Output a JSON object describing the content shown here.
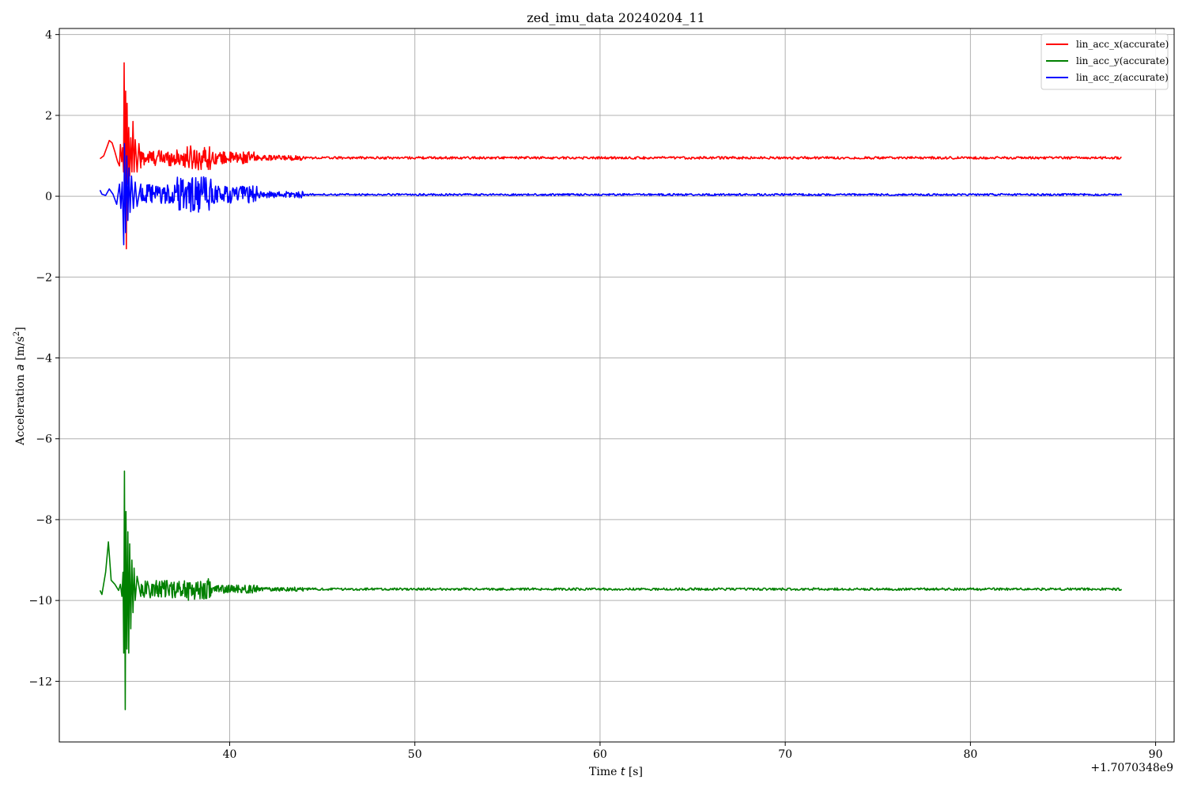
{
  "chart_data": {
    "type": "line",
    "title": "zed_imu_data 20240204_11",
    "xlabel": {
      "prefix": "Time ",
      "var": "t",
      "suffix": " [s]"
    },
    "ylabel": {
      "prefix": "Acceleration ",
      "var": "a",
      "unit": "[m/s",
      "sup": "2",
      "close": "]"
    },
    "x_offset_label": "+1.7070348e9",
    "xlim": [
      30.8,
      91.0
    ],
    "ylim": [
      -13.5,
      4.15
    ],
    "xticks": [
      40,
      50,
      60,
      70,
      80,
      90
    ],
    "yticks": [
      4,
      2,
      0,
      -2,
      -4,
      -6,
      -8,
      -10,
      -12
    ],
    "grid": true,
    "legend_position": "top-right",
    "x_range": [
      33.0,
      88.2
    ],
    "series": [
      {
        "name": "lin_acc_x(accurate)",
        "color": "#ff0000",
        "baseline": 0.95,
        "noise_late": 0.03,
        "points": [
          [
            33.0,
            0.93
          ],
          [
            33.2,
            1.0
          ],
          [
            33.4,
            1.25
          ],
          [
            33.5,
            1.38
          ],
          [
            33.65,
            1.32
          ],
          [
            33.8,
            1.1
          ],
          [
            33.95,
            0.85
          ],
          [
            34.05,
            0.75
          ],
          [
            34.1,
            1.28
          ],
          [
            34.17,
            0.85
          ],
          [
            34.22,
            1.2
          ],
          [
            34.27,
            0.6
          ],
          [
            34.3,
            3.3
          ],
          [
            34.34,
            0.2
          ],
          [
            34.38,
            2.6
          ],
          [
            34.42,
            -1.3
          ],
          [
            34.46,
            2.3
          ],
          [
            34.5,
            0.3
          ],
          [
            34.55,
            1.7
          ],
          [
            34.6,
            0.5
          ],
          [
            34.66,
            1.45
          ],
          [
            34.72,
            0.6
          ],
          [
            34.78,
            1.85
          ],
          [
            34.84,
            0.6
          ],
          [
            34.9,
            1.4
          ],
          [
            35.0,
            0.6
          ],
          [
            35.1,
            1.3
          ],
          [
            35.2,
            0.7
          ]
        ],
        "noisy": [
          [
            35.2,
            37.5,
            0.2
          ],
          [
            37.5,
            39.0,
            0.3
          ],
          [
            39.0,
            41.5,
            0.15
          ],
          [
            41.5,
            44.0,
            0.06
          ]
        ]
      },
      {
        "name": "lin_acc_y(accurate)",
        "color": "#008000",
        "baseline": -9.72,
        "noise_late": 0.03,
        "points": [
          [
            33.0,
            -9.75
          ],
          [
            33.1,
            -9.85
          ],
          [
            33.3,
            -9.3
          ],
          [
            33.45,
            -8.55
          ],
          [
            33.6,
            -9.5
          ],
          [
            33.8,
            -9.6
          ],
          [
            34.0,
            -9.75
          ],
          [
            34.1,
            -9.6
          ],
          [
            34.18,
            -9.9
          ],
          [
            34.24,
            -9.3
          ],
          [
            34.28,
            -11.3
          ],
          [
            34.32,
            -6.8
          ],
          [
            34.36,
            -12.7
          ],
          [
            34.4,
            -7.8
          ],
          [
            34.45,
            -11.2
          ],
          [
            34.5,
            -8.3
          ],
          [
            34.55,
            -11.3
          ],
          [
            34.6,
            -8.6
          ],
          [
            34.66,
            -10.7
          ],
          [
            34.72,
            -9.0
          ],
          [
            34.78,
            -10.3
          ],
          [
            34.84,
            -9.2
          ],
          [
            34.9,
            -10.0
          ],
          [
            35.0,
            -9.4
          ],
          [
            35.2,
            -9.9
          ]
        ],
        "noisy": [
          [
            35.2,
            37.5,
            0.22
          ],
          [
            37.5,
            39.0,
            0.28
          ],
          [
            39.0,
            41.5,
            0.1
          ],
          [
            41.5,
            44.0,
            0.05
          ]
        ]
      },
      {
        "name": "lin_acc_z(accurate)",
        "color": "#0000ff",
        "baseline": 0.04,
        "noise_late": 0.025,
        "points": [
          [
            33.0,
            0.15
          ],
          [
            33.1,
            0.05
          ],
          [
            33.3,
            0.02
          ],
          [
            33.5,
            0.18
          ],
          [
            33.7,
            0.05
          ],
          [
            33.9,
            -0.2
          ],
          [
            34.05,
            0.3
          ],
          [
            34.12,
            -0.3
          ],
          [
            34.2,
            0.35
          ],
          [
            34.28,
            -1.2
          ],
          [
            34.32,
            1.3
          ],
          [
            34.38,
            -0.9
          ],
          [
            34.44,
            1.0
          ],
          [
            34.5,
            -0.6
          ],
          [
            34.56,
            0.7
          ],
          [
            34.62,
            -0.4
          ],
          [
            34.7,
            0.5
          ],
          [
            34.8,
            -0.3
          ],
          [
            34.9,
            0.35
          ],
          [
            35.0,
            -0.25
          ],
          [
            35.2,
            0.3
          ]
        ],
        "noisy": [
          [
            35.2,
            37.0,
            0.25
          ],
          [
            37.0,
            39.0,
            0.45
          ],
          [
            39.0,
            41.5,
            0.22
          ],
          [
            41.5,
            44.0,
            0.08
          ]
        ]
      }
    ]
  }
}
